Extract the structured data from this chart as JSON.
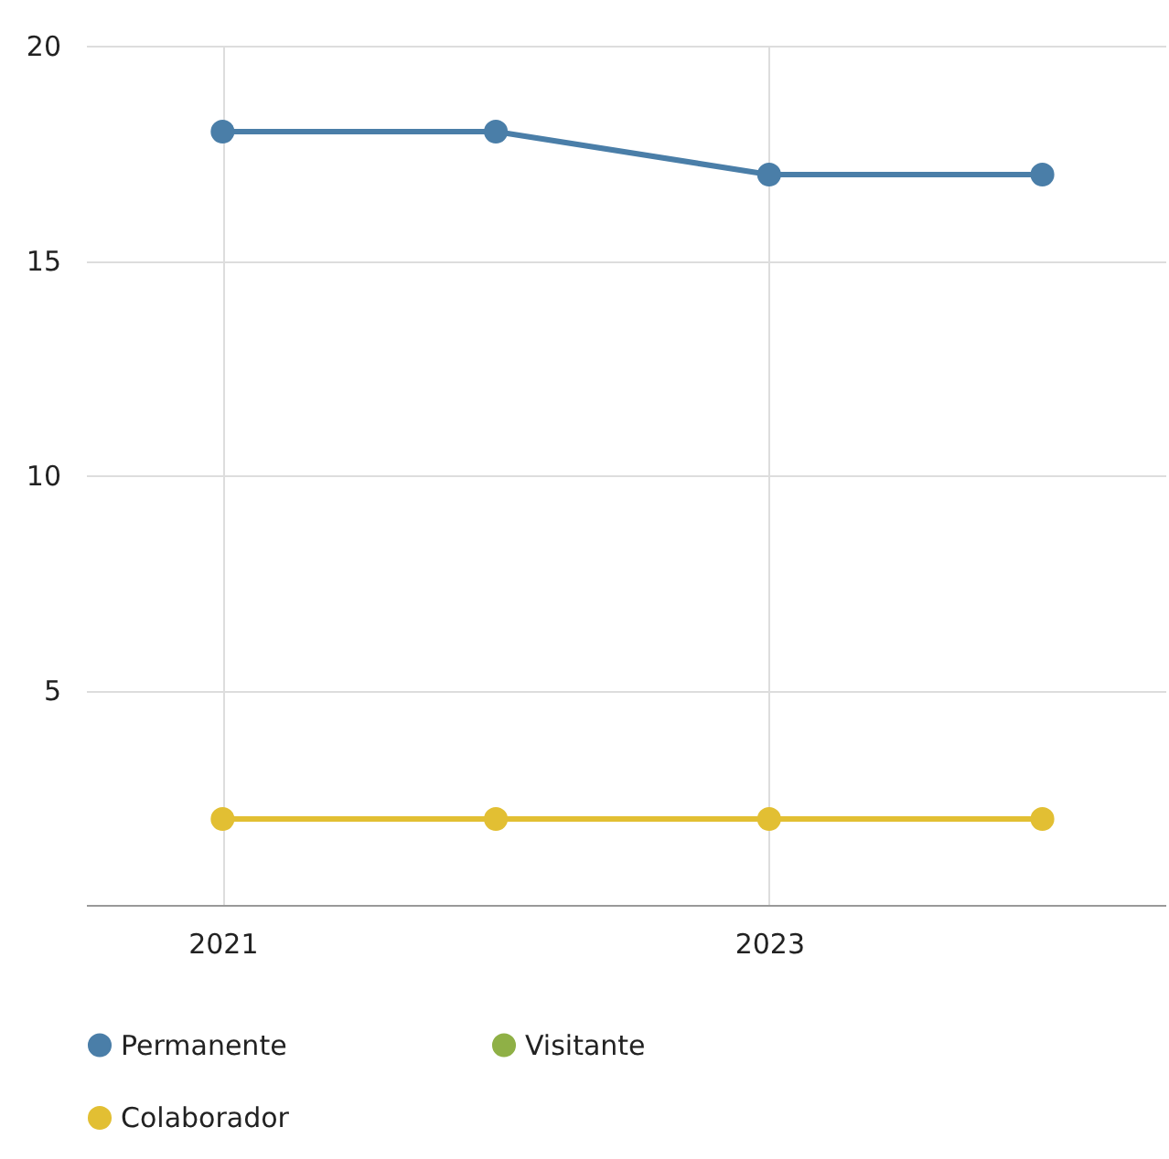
{
  "chart_data": {
    "type": "line",
    "x": [
      2021,
      2022,
      2023,
      2024
    ],
    "series": [
      {
        "name": "Permanente",
        "color": "#4a7ea8",
        "values": [
          18,
          18,
          17,
          17
        ]
      },
      {
        "name": "Visitante",
        "color": "#8fb046",
        "values": [
          null,
          null,
          null,
          null
        ]
      },
      {
        "name": "Colaborador",
        "color": "#e2bf33",
        "values": [
          2,
          2,
          2,
          2
        ]
      }
    ],
    "xlim": [
      2020.5,
      2024.45
    ],
    "xticks": [
      2021,
      2023
    ],
    "ylim": [
      0,
      20
    ],
    "yticks": [
      5,
      10,
      15,
      20
    ],
    "grid": true,
    "legend": "bottom",
    "marker": "circle",
    "line_style": "solid"
  }
}
